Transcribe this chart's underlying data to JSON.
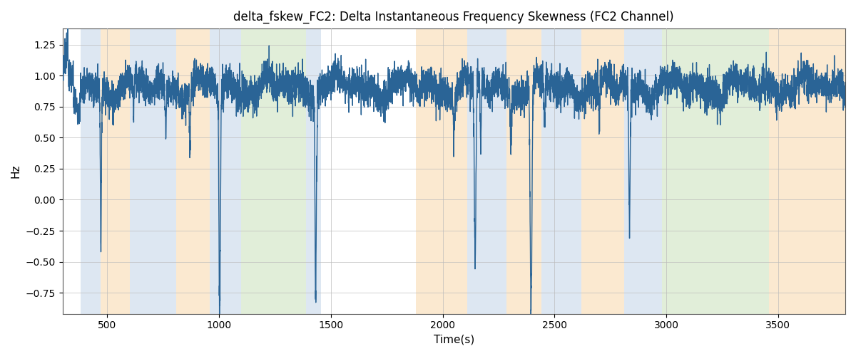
{
  "title": "delta_fskew_FC2: Delta Instantaneous Frequency Skewness (FC2 Channel)",
  "xlabel": "Time(s)",
  "ylabel": "Hz",
  "xlim": [
    300,
    3800
  ],
  "ylim": [
    -0.92,
    1.38
  ],
  "yticks": [
    -0.75,
    -0.5,
    -0.25,
    0.0,
    0.25,
    0.5,
    0.75,
    1.0,
    1.25
  ],
  "line_color": "#2a6496",
  "line_width": 1.0,
  "bg_color": "#ffffff",
  "grid_color": "#bbbbbb",
  "bands": [
    {
      "xmin": 380,
      "xmax": 470,
      "color": "#aac4e0",
      "alpha": 0.4
    },
    {
      "xmin": 470,
      "xmax": 600,
      "color": "#f5c98a",
      "alpha": 0.4
    },
    {
      "xmin": 600,
      "xmax": 810,
      "color": "#aac4e0",
      "alpha": 0.4
    },
    {
      "xmin": 810,
      "xmax": 960,
      "color": "#f5c98a",
      "alpha": 0.4
    },
    {
      "xmin": 960,
      "xmax": 1100,
      "color": "#aac4e0",
      "alpha": 0.4
    },
    {
      "xmin": 1100,
      "xmax": 1390,
      "color": "#b5d5a0",
      "alpha": 0.4
    },
    {
      "xmin": 1390,
      "xmax": 1455,
      "color": "#aac4e0",
      "alpha": 0.4
    },
    {
      "xmin": 1880,
      "xmax": 2110,
      "color": "#f5c98a",
      "alpha": 0.4
    },
    {
      "xmin": 2110,
      "xmax": 2285,
      "color": "#aac4e0",
      "alpha": 0.4
    },
    {
      "xmin": 2285,
      "xmax": 2440,
      "color": "#f5c98a",
      "alpha": 0.4
    },
    {
      "xmin": 2440,
      "xmax": 2620,
      "color": "#aac4e0",
      "alpha": 0.4
    },
    {
      "xmin": 2620,
      "xmax": 2810,
      "color": "#f5c98a",
      "alpha": 0.4
    },
    {
      "xmin": 2810,
      "xmax": 2980,
      "color": "#aac4e0",
      "alpha": 0.4
    },
    {
      "xmin": 2980,
      "xmax": 3200,
      "color": "#b5d5a0",
      "alpha": 0.4
    },
    {
      "xmin": 3200,
      "xmax": 3460,
      "color": "#b5d5a0",
      "alpha": 0.4
    },
    {
      "xmin": 3460,
      "xmax": 3640,
      "color": "#f5c98a",
      "alpha": 0.4
    },
    {
      "xmin": 3640,
      "xmax": 3800,
      "color": "#f5c98a",
      "alpha": 0.4
    }
  ],
  "figsize": [
    12.0,
    5.0
  ],
  "dpi": 100
}
